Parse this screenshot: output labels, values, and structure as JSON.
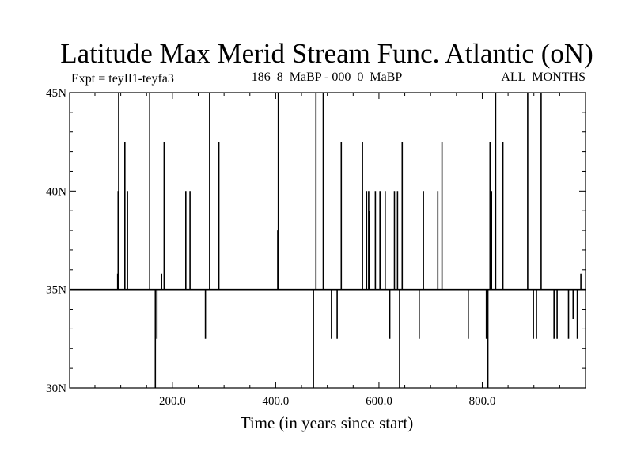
{
  "chart_data": {
    "type": "line",
    "title": "Latitude Max Merid Stream Func. Atlantic (oN)",
    "subtitle_left": "Expt = teyIl1-teyfa3",
    "subtitle_center": "186_8_MaBP - 000_0_MaBP",
    "subtitle_right": "ALL_MONTHS",
    "xlabel": "Time (in years since start)",
    "ylabel": "",
    "xlim": [
      1,
      1000
    ],
    "ylim": [
      30,
      45
    ],
    "x_ticks_major": [
      200,
      400,
      600,
      800
    ],
    "x_tick_labels": [
      "200.0",
      "400.0",
      "600.0",
      "800.0"
    ],
    "y_ticks_major": [
      30,
      35,
      40,
      45
    ],
    "y_tick_labels": [
      "30N",
      "35N",
      "40N",
      "45N"
    ],
    "baseline": 35,
    "grid": false,
    "series": [
      {
        "name": "",
        "color": "#000000",
        "spikes": [
          [
            94,
            35.8
          ],
          [
            95,
            40
          ],
          [
            96,
            45
          ],
          [
            108,
            42.5
          ],
          [
            113,
            40
          ],
          [
            156,
            45
          ],
          [
            167,
            30
          ],
          [
            170,
            32.5
          ],
          [
            179,
            35.8
          ],
          [
            184,
            42.5
          ],
          [
            226,
            40
          ],
          [
            234,
            40
          ],
          [
            264,
            32.5
          ],
          [
            272,
            45
          ],
          [
            290,
            42.5
          ],
          [
            404,
            38
          ],
          [
            405,
            45
          ],
          [
            473,
            30
          ],
          [
            478,
            45
          ],
          [
            492,
            45
          ],
          [
            508,
            32.5
          ],
          [
            519,
            32.5
          ],
          [
            527,
            42.5
          ],
          [
            568,
            42.5
          ],
          [
            576,
            40
          ],
          [
            580,
            40
          ],
          [
            582,
            39
          ],
          [
            593,
            40
          ],
          [
            602,
            40
          ],
          [
            612,
            40
          ],
          [
            621,
            32.5
          ],
          [
            630,
            40
          ],
          [
            636,
            40
          ],
          [
            640,
            30
          ],
          [
            645,
            42.5
          ],
          [
            678,
            32.5
          ],
          [
            686,
            40
          ],
          [
            714,
            40
          ],
          [
            722,
            42.5
          ],
          [
            773,
            32.5
          ],
          [
            808,
            32.5
          ],
          [
            811,
            30
          ],
          [
            815,
            42.5
          ],
          [
            818,
            40
          ],
          [
            826,
            45
          ],
          [
            840,
            42.5
          ],
          [
            888,
            45
          ],
          [
            899,
            32.5
          ],
          [
            905,
            32.5
          ],
          [
            914,
            45
          ],
          [
            939,
            32.5
          ],
          [
            945,
            32.5
          ],
          [
            967,
            32.5
          ],
          [
            976,
            33.5
          ],
          [
            984,
            32.5
          ],
          [
            991,
            35.8
          ]
        ]
      }
    ]
  }
}
